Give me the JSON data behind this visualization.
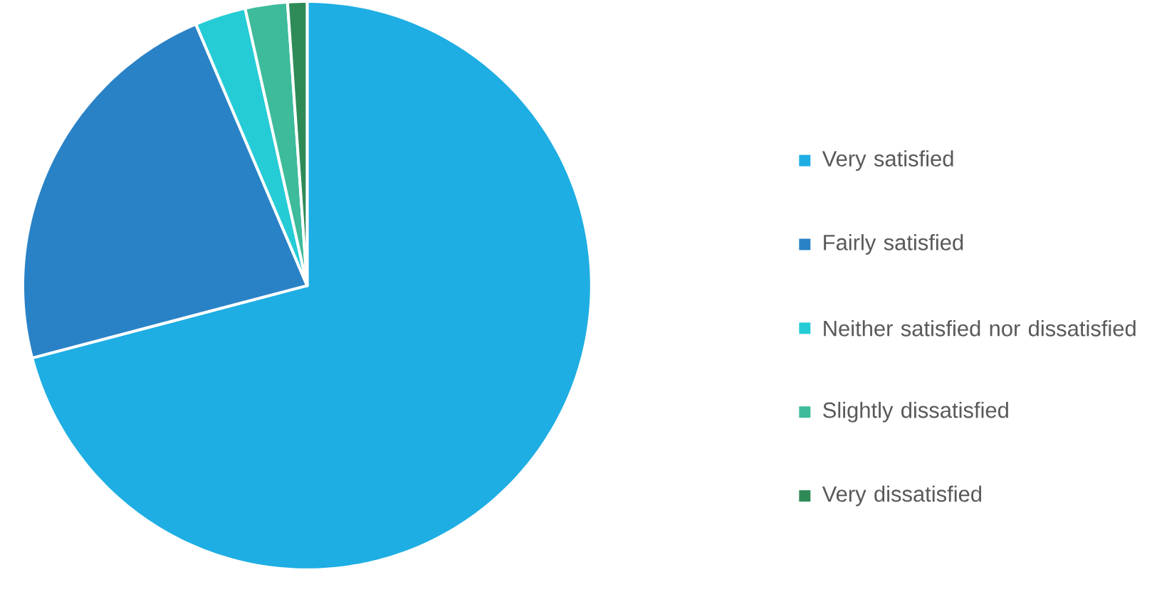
{
  "chart_data": {
    "type": "pie",
    "categories": [
      "Very satisfied",
      "Fairly satisfied",
      "Neither satisfied nor dissatisfied",
      "Slightly dissatisfied",
      "Very dissatisfied"
    ],
    "values": [
      70.9,
      22.7,
      2.9,
      2.4,
      1.1
    ],
    "colors": [
      "#1eaee3",
      "#2a82c6",
      "#25ccd6",
      "#3dbb9b",
      "#2e8b57"
    ],
    "legend": "right"
  }
}
